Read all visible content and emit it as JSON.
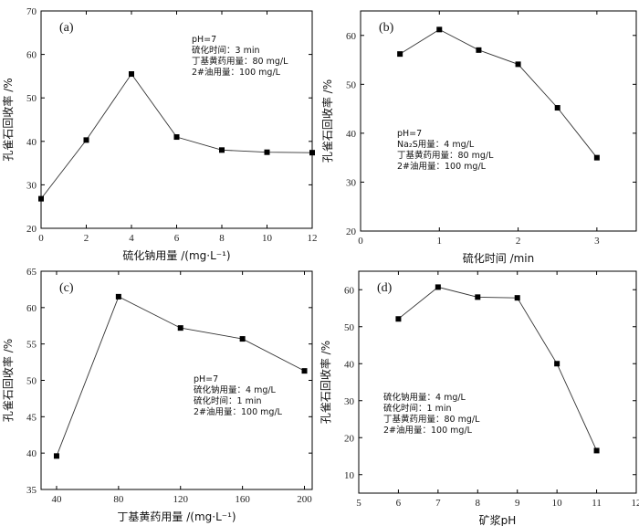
{
  "chart_data": [
    {
      "type": "line",
      "panel_label": "(a)",
      "xlabel": "硫化钠用量 /(mg·L⁻¹)",
      "ylabel": "孔雀石回收率 /%",
      "xlim": [
        0,
        12
      ],
      "ylim": [
        20,
        70
      ],
      "xticks": [
        0,
        2,
        4,
        6,
        8,
        10,
        12
      ],
      "yticks": [
        20,
        30,
        40,
        50,
        60,
        70
      ],
      "x": [
        0,
        2,
        4,
        6,
        8,
        10,
        12
      ],
      "y": [
        26.8,
        40.3,
        55.5,
        41.0,
        38.0,
        37.5,
        37.4
      ],
      "annotations": [
        "pH=7",
        "硫化时间：3 min",
        "丁基黄药用量：80 mg/L",
        "2#油用量：100 mg/L"
      ],
      "annotation_position": "top-right",
      "grid": false
    },
    {
      "type": "line",
      "panel_label": "(b)",
      "xlabel": "硫化时间 /min",
      "ylabel": "孔雀石回收率 /%",
      "xlim": [
        0,
        3.5
      ],
      "ylim": [
        20,
        65
      ],
      "xticks": [
        0,
        1,
        2,
        3
      ],
      "yticks": [
        20,
        30,
        40,
        50,
        60
      ],
      "x": [
        0.5,
        1.0,
        1.5,
        2.0,
        2.5,
        3.0
      ],
      "y": [
        56.2,
        61.2,
        57.0,
        54.1,
        45.2,
        35.0
      ],
      "annotations": [
        "pH=7",
        "Na₂S用量：4 mg/L",
        "丁基黄药用量：80 mg/L",
        "2#油用量：100 mg/L"
      ],
      "annotation_position": "bottom-left",
      "grid": false
    },
    {
      "type": "line",
      "panel_label": "(c)",
      "xlabel": "丁基黄药用量 /(mg·L⁻¹)",
      "ylabel": "孔雀石回收率 /%",
      "xlim": [
        30,
        205
      ],
      "ylim": [
        35,
        65
      ],
      "xticks": [
        40,
        80,
        120,
        160,
        200
      ],
      "yticks": [
        35,
        40,
        45,
        50,
        55,
        60,
        65
      ],
      "x": [
        40,
        80,
        120,
        160,
        200
      ],
      "y": [
        39.6,
        61.5,
        57.2,
        55.7,
        51.3
      ],
      "annotations": [
        "pH=7",
        "硫化钠用量：4 mg/L",
        "硫化时间：1 min",
        "2#油用量：100 mg/L"
      ],
      "annotation_position": "bottom-right",
      "grid": false
    },
    {
      "type": "line",
      "panel_label": "(d)",
      "xlabel": "矿浆pH",
      "ylabel": "孔雀石回收率 /%",
      "xlim": [
        5,
        12
      ],
      "ylim": [
        5,
        65
      ],
      "xticks": [
        5,
        6,
        7,
        8,
        9,
        10,
        11,
        12
      ],
      "yticks": [
        10,
        20,
        30,
        40,
        50,
        60
      ],
      "x": [
        6,
        7,
        8,
        9,
        10,
        11
      ],
      "y": [
        52.1,
        60.7,
        58.0,
        57.8,
        40.0,
        16.5
      ],
      "annotations": [
        "硫化钠用量：4 mg/L",
        "硫化时间：1 min",
        "丁基黄药用量：80 mg/L",
        "2#油用量：100 mg/L"
      ],
      "annotation_position": "bottom-left",
      "grid": false
    }
  ]
}
